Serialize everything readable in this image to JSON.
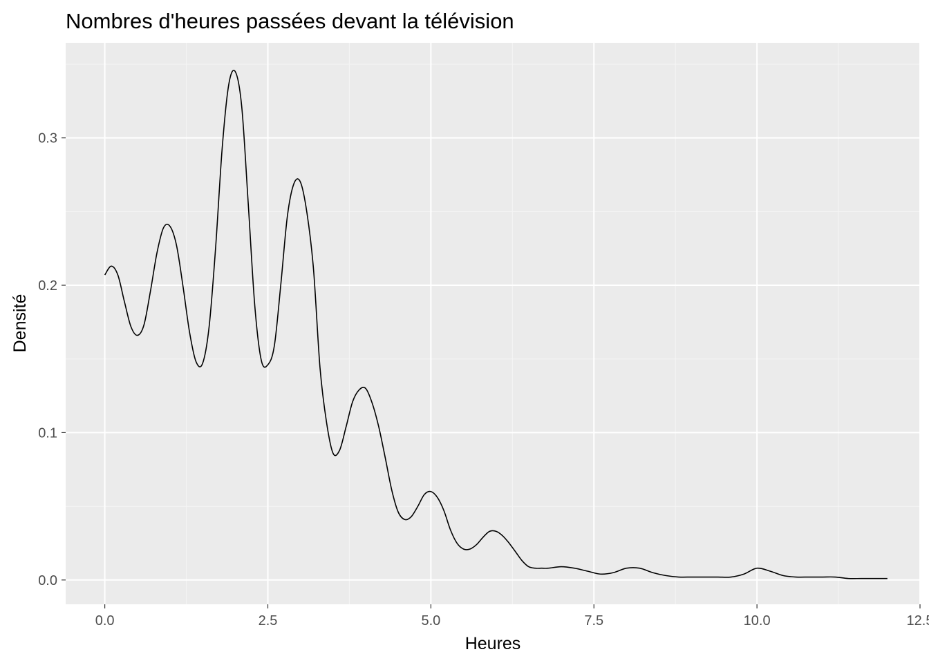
{
  "chart_data": {
    "type": "line",
    "title": "Nombres d'heures passées devant la télévision",
    "xlabel": "Heures",
    "ylabel": "Densité",
    "xlim": [
      -0.6,
      12.5
    ],
    "ylim": [
      -0.0165,
      0.3645
    ],
    "x_ticks": [
      {
        "value": 0,
        "label": "0.0"
      },
      {
        "value": 2.5,
        "label": "2.5"
      },
      {
        "value": 5,
        "label": "5.0"
      },
      {
        "value": 7.5,
        "label": "7.5"
      },
      {
        "value": 10,
        "label": "10.0"
      },
      {
        "value": 12.5,
        "label": "12.5"
      }
    ],
    "y_ticks": [
      {
        "value": 0,
        "label": "0.0"
      },
      {
        "value": 0.1,
        "label": "0.1"
      },
      {
        "value": 0.2,
        "label": "0.2"
      },
      {
        "value": 0.3,
        "label": "0.3"
      }
    ],
    "grid": true,
    "series": [
      {
        "x": [
          0,
          0.1,
          0.2,
          0.3,
          0.4,
          0.5,
          0.6,
          0.7,
          0.8,
          0.9,
          1.0,
          1.1,
          1.2,
          1.3,
          1.4,
          1.5,
          1.6,
          1.7,
          1.8,
          1.9,
          2.0,
          2.1,
          2.2,
          2.3,
          2.4,
          2.5,
          2.6,
          2.7,
          2.8,
          2.9,
          3.0,
          3.1,
          3.2,
          3.3,
          3.4,
          3.5,
          3.6,
          3.7,
          3.8,
          3.9,
          4.0,
          4.1,
          4.2,
          4.3,
          4.4,
          4.5,
          4.6,
          4.7,
          4.8,
          4.9,
          5.0,
          5.1,
          5.2,
          5.3,
          5.4,
          5.5,
          5.6,
          5.7,
          5.8,
          5.9,
          6.0,
          6.1,
          6.2,
          6.3,
          6.4,
          6.5,
          6.6,
          6.7,
          6.8,
          7.0,
          7.2,
          7.4,
          7.6,
          7.8,
          8.0,
          8.2,
          8.4,
          8.6,
          8.8,
          9.0,
          9.2,
          9.4,
          9.6,
          9.8,
          10.0,
          10.2,
          10.4,
          10.6,
          10.8,
          11.0,
          11.2,
          11.4,
          11.6,
          11.8,
          12.0
        ],
        "y": [
          0.207,
          0.213,
          0.207,
          0.189,
          0.172,
          0.166,
          0.173,
          0.196,
          0.222,
          0.239,
          0.24,
          0.227,
          0.199,
          0.168,
          0.148,
          0.147,
          0.172,
          0.226,
          0.293,
          0.336,
          0.345,
          0.321,
          0.255,
          0.186,
          0.149,
          0.146,
          0.159,
          0.201,
          0.247,
          0.269,
          0.27,
          0.249,
          0.211,
          0.144,
          0.107,
          0.086,
          0.088,
          0.104,
          0.121,
          0.129,
          0.13,
          0.12,
          0.104,
          0.083,
          0.061,
          0.046,
          0.041,
          0.043,
          0.05,
          0.058,
          0.06,
          0.056,
          0.047,
          0.034,
          0.025,
          0.021,
          0.021,
          0.024,
          0.029,
          0.033,
          0.033,
          0.03,
          0.025,
          0.019,
          0.013,
          0.009,
          0.008,
          0.008,
          0.008,
          0.009,
          0.008,
          0.006,
          0.004,
          0.005,
          0.008,
          0.008,
          0.005,
          0.003,
          0.002,
          0.002,
          0.002,
          0.002,
          0.002,
          0.004,
          0.008,
          0.006,
          0.003,
          0.002,
          0.002,
          0.002,
          0.002,
          0.001,
          0.001,
          0.001,
          0.001
        ]
      }
    ]
  },
  "colors": {
    "panel_background": "#ebebeb",
    "grid_major": "#ffffff",
    "grid_minor": "#f5f5f5",
    "line": "#000000",
    "tick_text": "#4d4d4d",
    "tick_mark": "#333333"
  }
}
